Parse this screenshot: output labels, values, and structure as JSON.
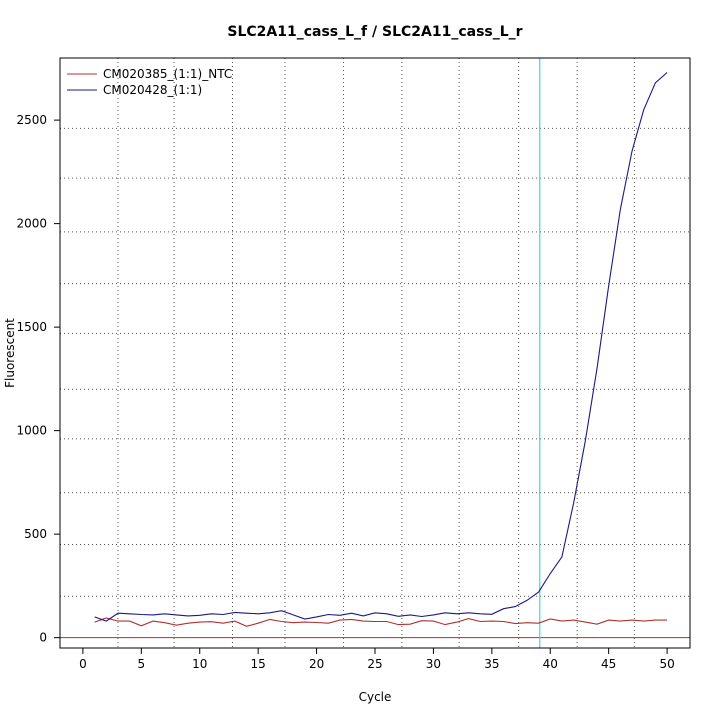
{
  "chart_data": {
    "type": "line",
    "title": "SLC2A11_cass_L_f / SLC2A11_cass_L_r",
    "xlabel": "Cycle",
    "ylabel": "Fluorescent",
    "xlim": [
      -1.96,
      51.96
    ],
    "ylim": [
      -50,
      2800
    ],
    "xticks": [
      "0",
      "5",
      "10",
      "15",
      "20",
      "25",
      "30",
      "35",
      "40",
      "45",
      "50"
    ],
    "yticks": [
      "0",
      "500",
      "1000",
      "1500",
      "2000",
      "2500"
    ],
    "vgrid": [
      3,
      7.8,
      12.8,
      17.3,
      22.3,
      27.3,
      32.2,
      37.3,
      42.3,
      47.2
    ],
    "hgrid": [
      200,
      450,
      700,
      960,
      1200,
      1470,
      1710,
      1960,
      2220,
      2460
    ],
    "grid": true,
    "legend_position": "top-left",
    "threshold_cycle": 39.1,
    "threshold_color": "#33dddd",
    "baseline_y": 0,
    "baseline_color": "#b03030",
    "series": [
      {
        "name": "CM020385_(1:1)_NTC",
        "color": "#b03030",
        "x": [
          1,
          2,
          3,
          4,
          5,
          6,
          7,
          8,
          9,
          10,
          11,
          12,
          13,
          14,
          15,
          16,
          17,
          18,
          19,
          20,
          21,
          22,
          23,
          24,
          25,
          26,
          27,
          28,
          29,
          30,
          31,
          32,
          33,
          34,
          35,
          36,
          37,
          38,
          39,
          40,
          41,
          42,
          43,
          44,
          45,
          46,
          47,
          48,
          49,
          50
        ],
        "y": [
          75,
          95,
          80,
          80,
          57,
          80,
          72,
          60,
          70,
          75,
          77,
          70,
          80,
          55,
          70,
          88,
          78,
          72,
          75,
          73,
          70,
          85,
          88,
          80,
          78,
          78,
          63,
          65,
          82,
          80,
          63,
          75,
          92,
          78,
          80,
          78,
          68,
          72,
          70,
          90,
          80,
          85,
          75,
          65,
          85,
          80,
          85,
          80,
          85,
          85
        ]
      },
      {
        "name": "CM020428_(1:1)",
        "color": "#1a1a80",
        "x": [
          1,
          2,
          3,
          4,
          5,
          6,
          7,
          8,
          9,
          10,
          11,
          12,
          13,
          14,
          15,
          16,
          17,
          18,
          19,
          20,
          21,
          22,
          23,
          24,
          25,
          26,
          27,
          28,
          29,
          30,
          31,
          32,
          33,
          34,
          35,
          36,
          37,
          38,
          39,
          40,
          41,
          42,
          43,
          44,
          45,
          46,
          47,
          48,
          49,
          50
        ],
        "y": [
          100,
          80,
          118,
          115,
          112,
          110,
          115,
          110,
          105,
          108,
          115,
          112,
          122,
          118,
          115,
          120,
          130,
          110,
          90,
          100,
          112,
          108,
          118,
          105,
          120,
          115,
          103,
          110,
          102,
          110,
          120,
          115,
          120,
          115,
          113,
          140,
          150,
          180,
          220,
          310,
          390,
          650,
          950,
          1300,
          1700,
          2070,
          2350,
          2550,
          2680,
          2730
        ]
      }
    ]
  }
}
